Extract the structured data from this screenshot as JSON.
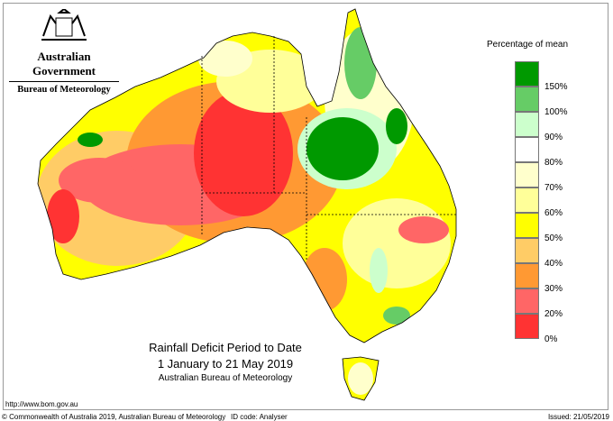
{
  "header": {
    "gov": "Australian Government",
    "bureau": "Bureau of Meteorology"
  },
  "title": {
    "line1": "Rainfall Deficit Period to Date",
    "line2": "1 January to 21 May 2019",
    "line3": "Australian Bureau of Meteorology"
  },
  "legend": {
    "title": "Percentage of mean",
    "colors": [
      "#009900",
      "#66cc66",
      "#ccffcc",
      "#ffffff",
      "#ffffcc",
      "#ffff99",
      "#ffff00",
      "#ffcc66",
      "#ff9933",
      "#ff6666",
      "#ff3333"
    ],
    "labels": [
      "150%",
      "100%",
      "90%",
      "80%",
      "70%",
      "60%",
      "50%",
      "40%",
      "30%",
      "20%",
      "0%"
    ]
  },
  "footer": {
    "url": "http://www.bom.gov.au",
    "copyright": "© Commonwealth of Australia 2019, Australian Bureau of Meteorology",
    "id_code": "ID code: Analyser",
    "issued": "Issued: 21/05/2019"
  }
}
